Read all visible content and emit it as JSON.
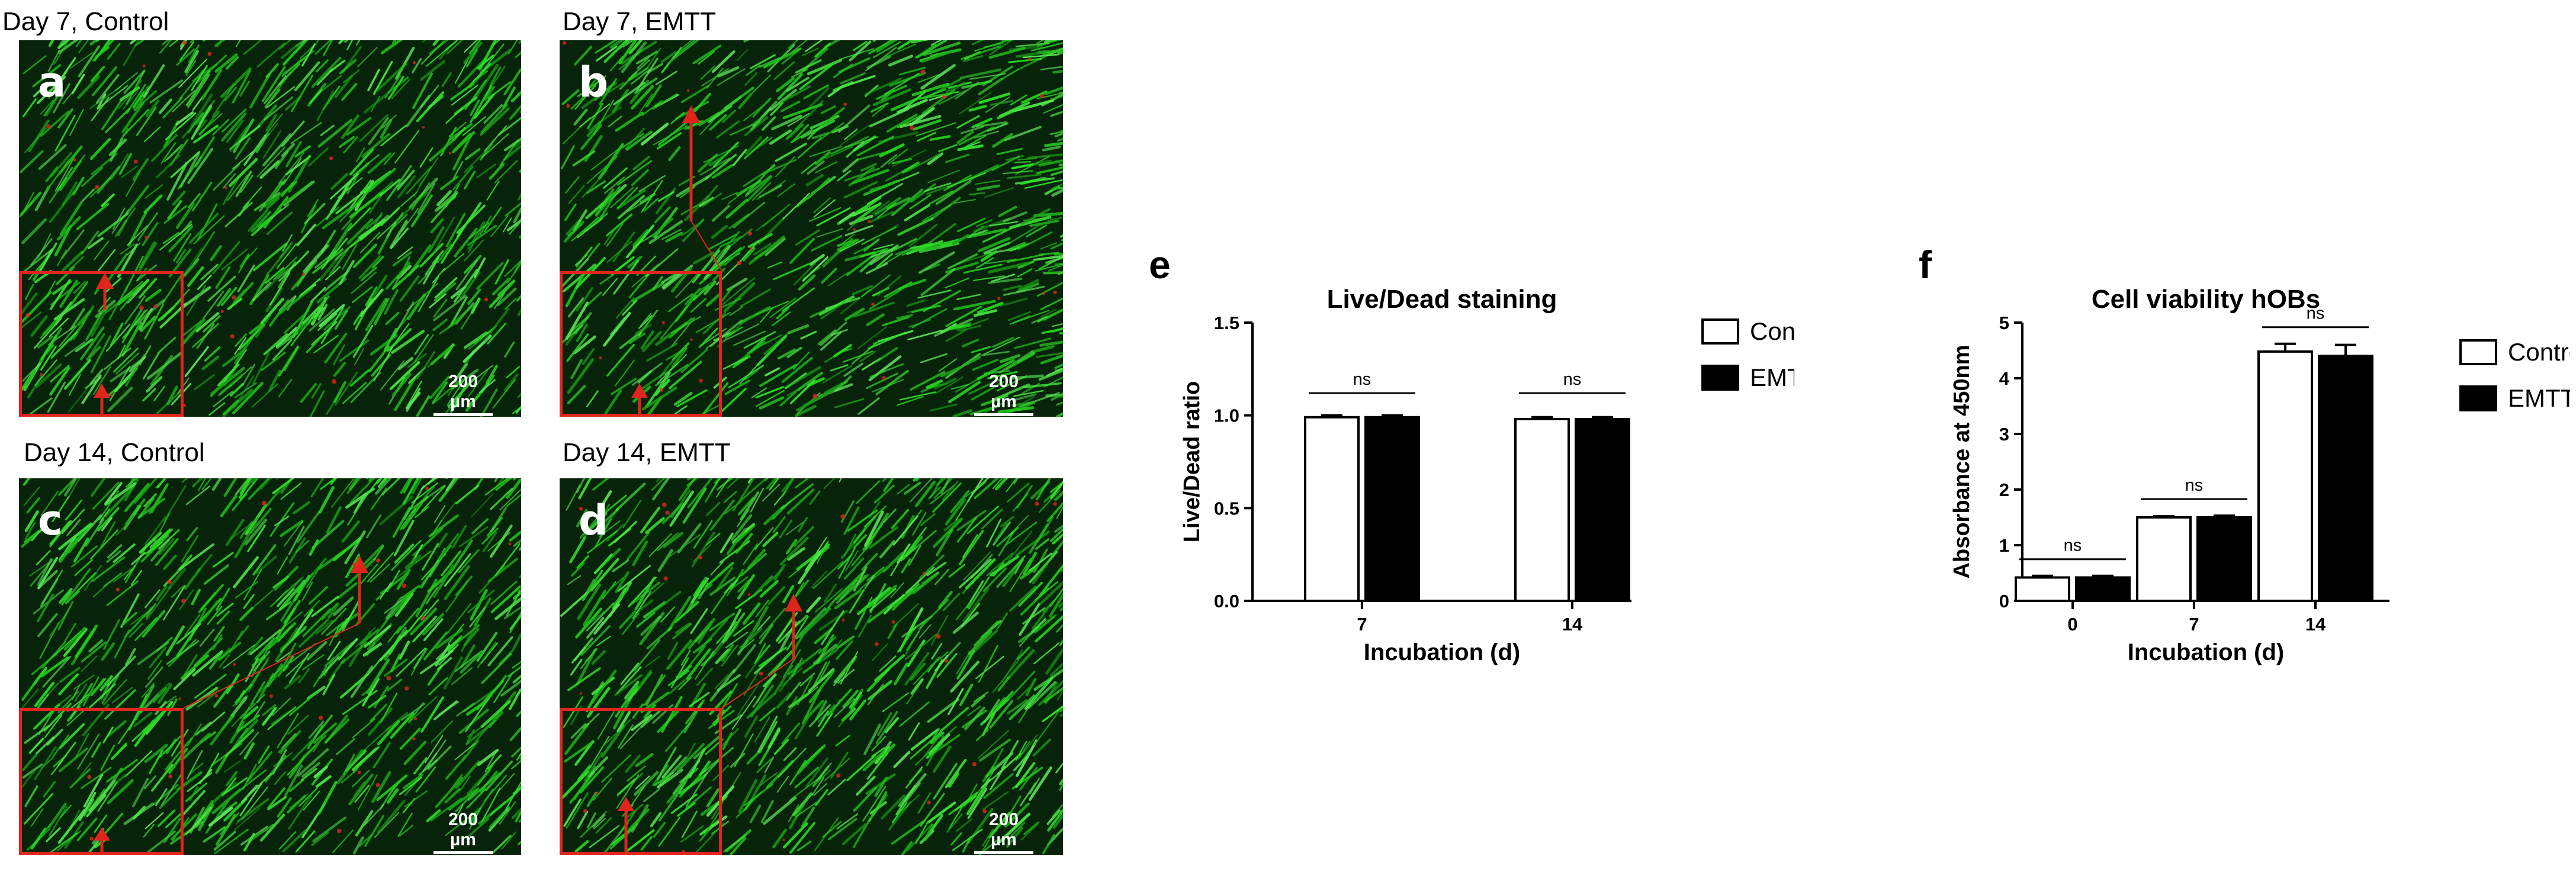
{
  "micrographs": [
    {
      "letter": "a",
      "caption": "Day 7, Control",
      "scale": "200 µm"
    },
    {
      "letter": "b",
      "caption": "Day 7, EMTT",
      "scale": "200 µm"
    },
    {
      "letter": "c",
      "caption": "Day 14, Control",
      "scale": "200 µm"
    },
    {
      "letter": "d",
      "caption": "Day 14, EMTT",
      "scale": "200 µm"
    }
  ],
  "colors": {
    "live": "#2fd12a",
    "dead": "#e0251c",
    "control_fill": "#ffffff",
    "emtt_fill": "#000000"
  },
  "chart_data": [
    {
      "panel": "e",
      "type": "bar",
      "title": "Live/Dead staining",
      "xlabel": "Incubation (d)",
      "ylabel": "Live/Dead ratio",
      "categories": [
        "7",
        "14"
      ],
      "ylim": [
        0,
        1.5
      ],
      "yticks": [
        "0.0",
        "0.5",
        "1.0",
        "1.5"
      ],
      "series": [
        {
          "name": "Control",
          "values": [
            0.99,
            0.98
          ],
          "errors": [
            0.01,
            0.01
          ]
        },
        {
          "name": "EMTT",
          "values": [
            0.99,
            0.98
          ],
          "errors": [
            0.01,
            0.01
          ]
        }
      ],
      "significance": [
        "ns",
        "ns"
      ],
      "legend": "right"
    },
    {
      "panel": "f",
      "type": "bar",
      "title": "Cell viability hOBs",
      "xlabel": "Incubation (d)",
      "ylabel": "Absorbance at 450nm",
      "categories": [
        "0",
        "7",
        "14"
      ],
      "ylim": [
        0,
        5
      ],
      "yticks": [
        "0",
        "1",
        "2",
        "3",
        "4",
        "5"
      ],
      "series": [
        {
          "name": "Control",
          "values": [
            0.42,
            1.5,
            4.48
          ],
          "errors": [
            0.03,
            0.02,
            0.14
          ]
        },
        {
          "name": "EMTT",
          "values": [
            0.42,
            1.5,
            4.4
          ],
          "errors": [
            0.03,
            0.03,
            0.2
          ]
        }
      ],
      "significance": [
        "ns",
        "ns",
        "ns"
      ],
      "legend": "right"
    }
  ]
}
